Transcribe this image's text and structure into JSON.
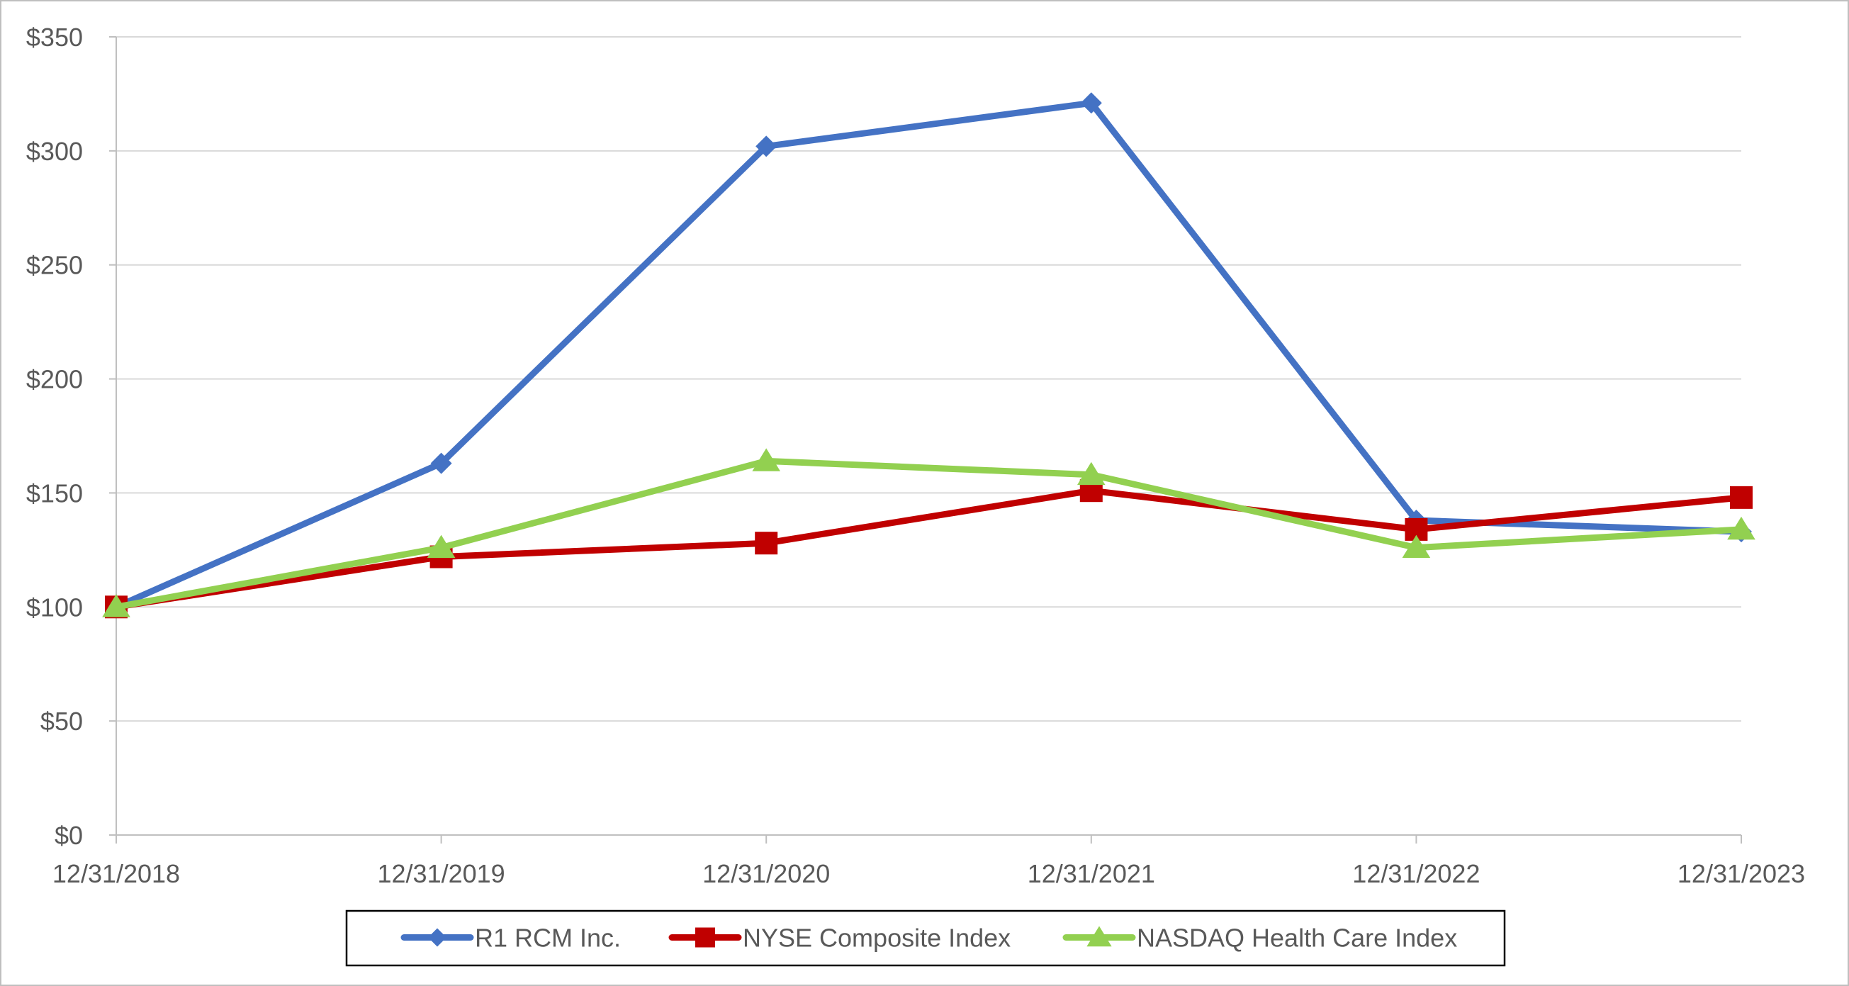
{
  "chart_data": {
    "type": "line",
    "title": "",
    "xlabel": "",
    "ylabel": "",
    "categories": [
      "12/31/2018",
      "12/31/2019",
      "12/31/2020",
      "12/31/2021",
      "12/31/2022",
      "12/31/2023"
    ],
    "y_ticks": [
      "$0",
      "$50",
      "$100",
      "$150",
      "$200",
      "$250",
      "$300",
      "$350"
    ],
    "ylim": [
      0,
      350
    ],
    "y_step": 50,
    "grid": "horizontal",
    "legend_position": "bottom",
    "series": [
      {
        "name": "R1 RCM Inc.",
        "color": "#4472c4",
        "marker": "diamond",
        "values": [
          100,
          163,
          302,
          321,
          138,
          133
        ]
      },
      {
        "name": "NYSE Composite Index",
        "color": "#c00000",
        "marker": "square",
        "values": [
          100,
          122,
          128,
          151,
          134,
          148
        ]
      },
      {
        "name": "NASDAQ Health Care Index",
        "color": "#92d050",
        "marker": "triangle",
        "values": [
          100,
          126,
          164,
          158,
          126,
          134
        ]
      }
    ]
  }
}
